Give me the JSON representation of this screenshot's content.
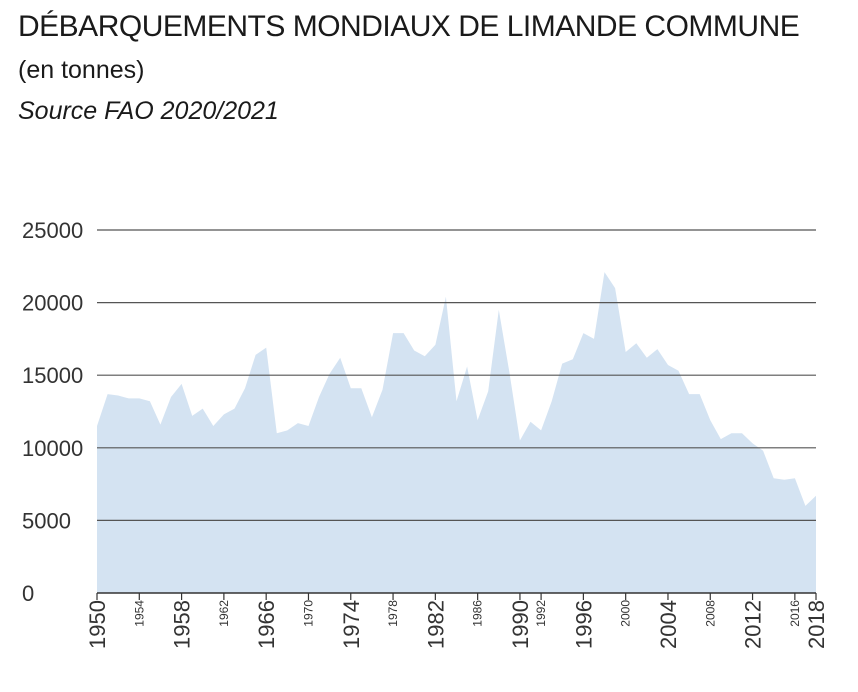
{
  "title": "DÉBARQUEMENTS MONDIAUX DE LIMANDE COMMUNE",
  "subtitle": "(en tonnes)",
  "source": "Source FAO 2020/2021",
  "colors": {
    "area": "#d4e3f2",
    "grid": "#555555",
    "text": "#333333"
  },
  "chart_data": {
    "type": "area",
    "title": "DÉBARQUEMENTS MONDIAUX DE LIMANDE COMMUNE",
    "xlabel": "",
    "ylabel": "",
    "ylim": [
      0,
      25000
    ],
    "xlim": [
      1950,
      2018
    ],
    "grid": true,
    "yticks": [
      {
        "value": 0,
        "label": "0"
      },
      {
        "value": 5000,
        "label": "5000"
      },
      {
        "value": 10000,
        "label": "10000"
      },
      {
        "value": 15000,
        "label": "15000"
      },
      {
        "value": 20000,
        "label": "20000"
      },
      {
        "value": 25000,
        "label": "25000"
      }
    ],
    "xticks": [
      {
        "value": 1950,
        "label": "1950",
        "major": true
      },
      {
        "value": 1954,
        "label": "1954",
        "major": false
      },
      {
        "value": 1958,
        "label": "1958",
        "major": true
      },
      {
        "value": 1962,
        "label": "1962",
        "major": false
      },
      {
        "value": 1966,
        "label": "1966",
        "major": true
      },
      {
        "value": 1970,
        "label": "1970",
        "major": false
      },
      {
        "value": 1974,
        "label": "1974",
        "major": true
      },
      {
        "value": 1978,
        "label": "1978",
        "major": false
      },
      {
        "value": 1982,
        "label": "1982",
        "major": true
      },
      {
        "value": 1986,
        "label": "1986",
        "major": false
      },
      {
        "value": 1990,
        "label": "1990",
        "major": true
      },
      {
        "value": 1992,
        "label": "1992",
        "major": false
      },
      {
        "value": 1996,
        "label": "1996",
        "major": true
      },
      {
        "value": 2000,
        "label": "2000",
        "major": false
      },
      {
        "value": 2004,
        "label": "2004",
        "major": true
      },
      {
        "value": 2008,
        "label": "2008",
        "major": false
      },
      {
        "value": 2012,
        "label": "2012",
        "major": true
      },
      {
        "value": 2016,
        "label": "2016",
        "major": false
      },
      {
        "value": 2018,
        "label": "2018",
        "major": true
      }
    ],
    "x": [
      1950,
      1951,
      1952,
      1953,
      1954,
      1955,
      1956,
      1957,
      1958,
      1959,
      1960,
      1961,
      1962,
      1963,
      1964,
      1965,
      1966,
      1967,
      1968,
      1969,
      1970,
      1971,
      1972,
      1973,
      1974,
      1975,
      1976,
      1977,
      1978,
      1979,
      1980,
      1981,
      1982,
      1983,
      1984,
      1985,
      1986,
      1987,
      1988,
      1989,
      1990,
      1991,
      1992,
      1993,
      1994,
      1995,
      1996,
      1997,
      1998,
      1999,
      2000,
      2001,
      2002,
      2003,
      2004,
      2005,
      2006,
      2007,
      2008,
      2009,
      2010,
      2011,
      2012,
      2013,
      2014,
      2015,
      2016,
      2017,
      2018
    ],
    "series": [
      {
        "values": [
          11500,
          13700,
          13600,
          13400,
          13400,
          13200,
          11600,
          13500,
          14400,
          12200,
          12700,
          11500,
          12300,
          12700,
          14100,
          16400,
          16900,
          11000,
          11200,
          11700,
          11500,
          13500,
          15100,
          16200,
          14100,
          14100,
          12100,
          14000,
          17900,
          17900,
          16700,
          16300,
          17100,
          20400,
          13200,
          15600,
          11900,
          13900,
          19500,
          15200,
          10500,
          11800,
          11200,
          13200,
          15800,
          16100,
          17900,
          17500,
          22100,
          21000,
          16600,
          17200,
          16200,
          16800,
          15700,
          15300,
          13700,
          13700,
          11900,
          10600,
          11000,
          11000,
          10300,
          9800,
          7900,
          7800,
          7900,
          6000,
          6700
        ]
      }
    ]
  }
}
